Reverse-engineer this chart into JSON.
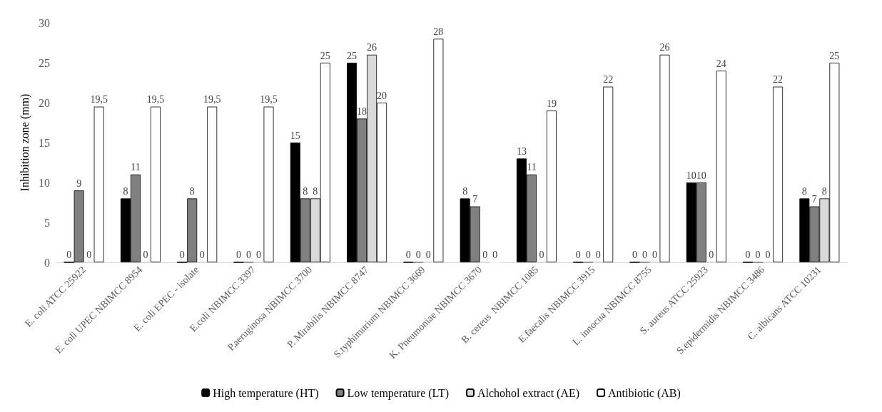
{
  "chart_data": {
    "type": "bar",
    "ylabel": "Inhibition zone (mm)",
    "categories": [
      "E. coli ATCC 25922",
      "E. coli UPEC NBIMCC 8954",
      "E. coli EPEC - isolate",
      "E.coli NBIMCC 3397",
      "P.aeruginosa NBIMCC 3700",
      "P. Mirabilis NBIMCC 8747",
      "S.typhimurium NBIMCC 3669",
      "K. Pneumoniae NBIMCC 3670",
      "B. cereus  NBIMCC 1085",
      "E.faecalis NBIMCC 3915",
      "L. innocua NBIMCC 8755",
      "S. aureus ATCC 25923",
      "S.epidermidis NBIMCC 3486",
      "C. albicans ATCC 10231"
    ],
    "series": [
      {
        "name": "High temperature (HT)",
        "color": "#000000",
        "values": [
          0,
          8,
          0,
          0,
          15,
          25,
          0,
          8,
          13,
          0,
          0,
          10,
          0,
          8
        ],
        "value_labels": [
          "0",
          "8",
          "0",
          "0",
          "15",
          "25",
          "0",
          "8",
          "13",
          "0",
          "0",
          "10",
          "0",
          "8"
        ]
      },
      {
        "name": "Low temperature (LT)",
        "color": "#808080",
        "values": [
          9,
          11,
          8,
          0,
          8,
          18,
          0,
          7,
          11,
          0,
          0,
          10,
          0,
          7
        ],
        "value_labels": [
          "9",
          "11",
          "8",
          "0",
          "8",
          "18",
          "0",
          "7",
          "11",
          "0",
          "0",
          "10",
          "0",
          "7"
        ]
      },
      {
        "name": "Alchohol extract (AE)",
        "color": "#d9d9d9",
        "values": [
          0,
          0,
          0,
          0,
          8,
          26,
          0,
          0,
          0,
          0,
          0,
          0,
          0,
          8
        ],
        "value_labels": [
          "0",
          "0",
          "0",
          "0",
          "8",
          "26",
          "0",
          "0",
          "0",
          "0",
          "0",
          "0",
          "0",
          "8"
        ]
      },
      {
        "name": "Antibiotic (AB)",
        "color": "#ffffff",
        "values": [
          19.5,
          19.5,
          19.5,
          19.5,
          25,
          20,
          28,
          0,
          19,
          22,
          26,
          24,
          22,
          25
        ],
        "value_labels": [
          "19,5",
          "19,5",
          "19,5",
          "19,5",
          "25",
          "20",
          "28",
          "0",
          "19",
          "22",
          "26",
          "24",
          "22",
          "25"
        ]
      }
    ],
    "ylim": [
      0,
      30
    ],
    "yticks": [
      0,
      5,
      10,
      15,
      20,
      25,
      30
    ],
    "grid": false,
    "legend": "bottom"
  }
}
